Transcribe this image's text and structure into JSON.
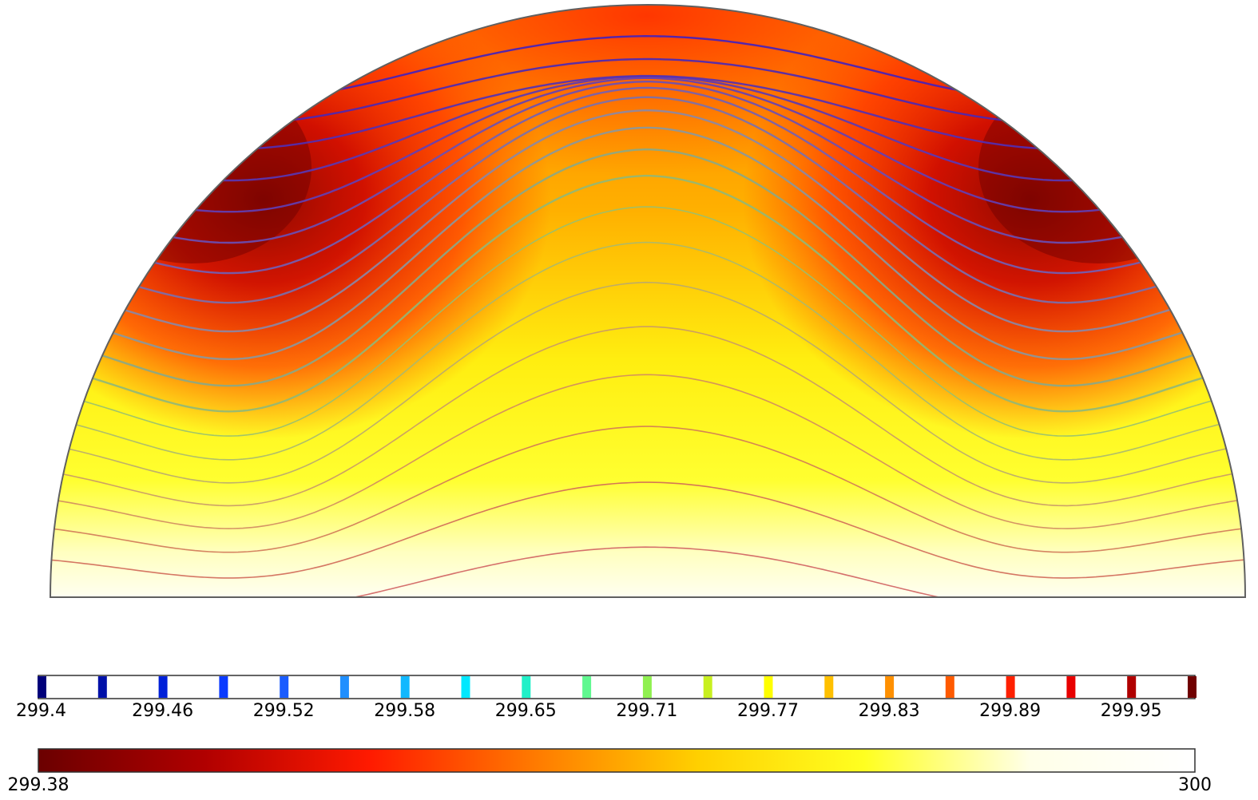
{
  "chart_data": {
    "type": "heatmap",
    "title": "",
    "xlabel": "",
    "ylabel": "",
    "colormap": "heat",
    "color_range": [
      299.38,
      300
    ],
    "colormap_stops": [
      "#6b0000",
      "#b00000",
      "#ff1a00",
      "#ff7a00",
      "#ffd000",
      "#ffff20",
      "#ffffe8",
      "#ffffff"
    ],
    "contour_legend": {
      "levels": [
        299.4,
        299.43,
        299.46,
        299.49,
        299.52,
        299.55,
        299.58,
        299.61,
        299.65,
        299.68,
        299.71,
        299.74,
        299.77,
        299.8,
        299.83,
        299.86,
        299.89,
        299.92,
        299.95,
        299.98
      ],
      "tick_labels": [
        "299.4",
        "299.46",
        "299.52",
        "299.58",
        "299.65",
        "299.71",
        "299.77",
        "299.83",
        "299.89",
        "299.95"
      ],
      "colors": [
        "#00007a",
        "#0010a8",
        "#0020d8",
        "#0a3aff",
        "#1a5cff",
        "#1f8fff",
        "#10b8ff",
        "#00e8ff",
        "#20f0c8",
        "#60f890",
        "#90f050",
        "#c8f020",
        "#ffff00",
        "#ffc000",
        "#ff9000",
        "#ff5a00",
        "#ff2000",
        "#e80000",
        "#b00000",
        "#700000"
      ]
    },
    "colorbar": {
      "min_label": "299.38",
      "max_label": "300"
    },
    "contour_count": 20,
    "grid": false,
    "legend": "bottom"
  }
}
